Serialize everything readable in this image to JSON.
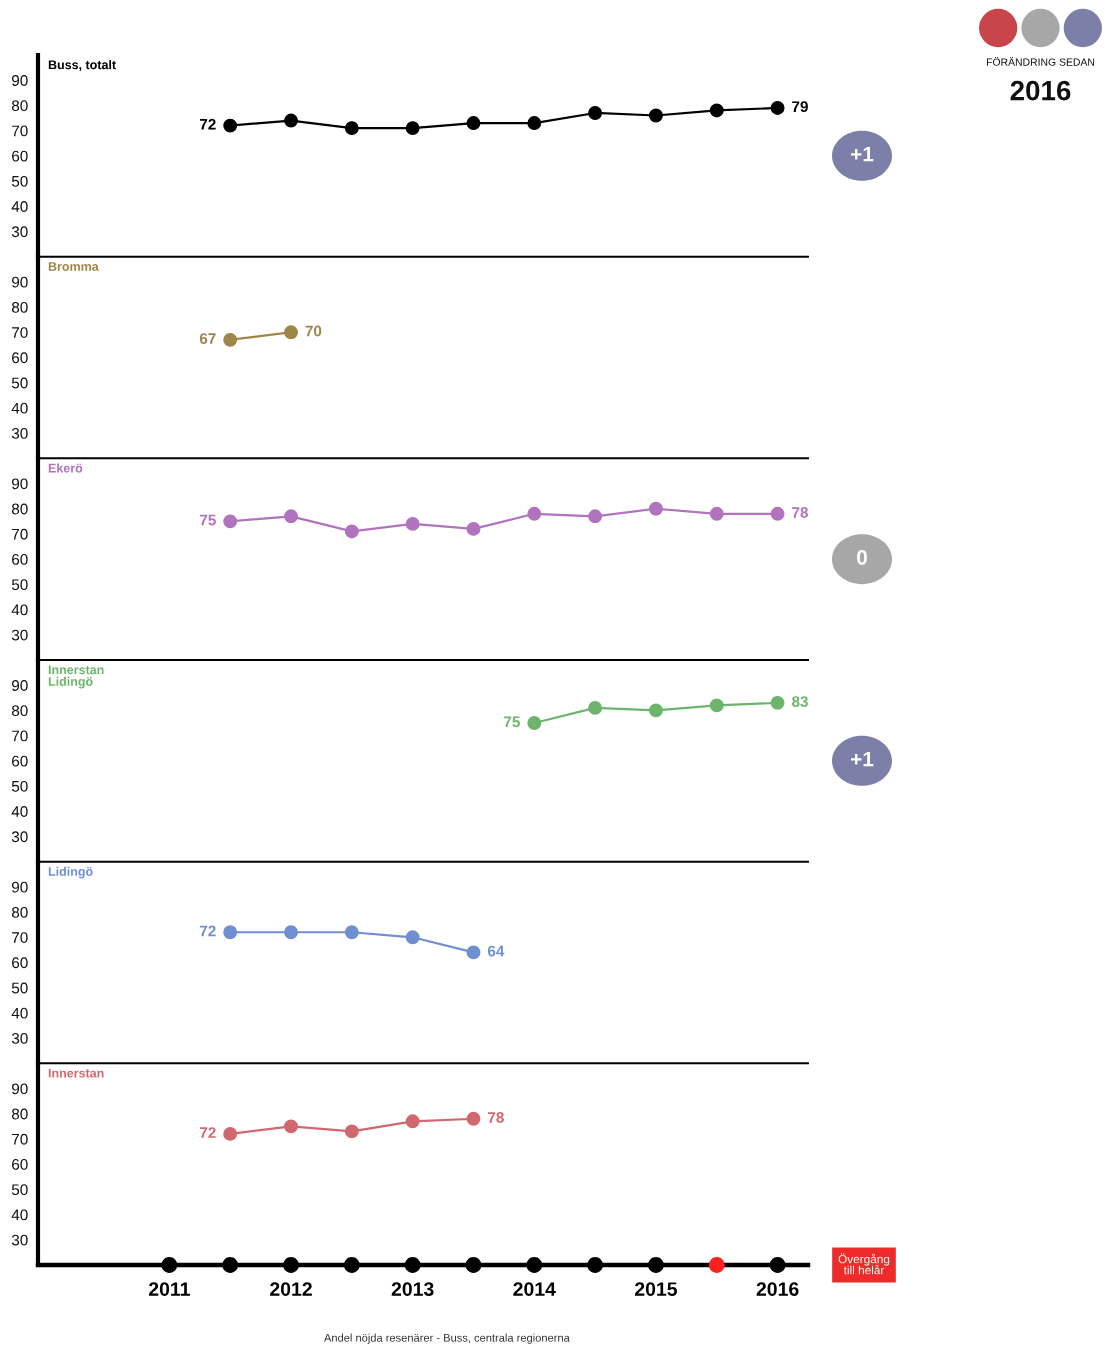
{
  "chart_data": [
    {
      "type": "other",
      "title": "FÖRÄNDRING SEDAN",
      "subtitle": "2016",
      "colors": [
        "#c8464b",
        "#a7a7a7",
        "#7c80a9"
      ]
    },
    {
      "type": "line",
      "title": "Buss, totalt",
      "series": [
        {
          "color": "#000000",
          "x": [
            2011.5,
            2012,
            2012.5,
            2013,
            2013.5,
            2014,
            2014.5,
            2015,
            2015.5,
            2016
          ],
          "values": [
            72,
            74,
            71,
            71,
            73,
            73,
            77,
            76,
            78,
            79
          ],
          "value_labels": [
            "72",
            null,
            null,
            null,
            null,
            null,
            null,
            null,
            null,
            "79"
          ]
        }
      ],
      "xlim": [
        2009.92,
        2016.25
      ],
      "ylim": [
        20,
        100
      ],
      "xticks": [
        2011,
        2012,
        2013,
        2014,
        2015,
        2016
      ],
      "yticks": [
        30,
        40,
        50,
        60,
        70,
        80,
        90
      ],
      "tick_labels": "y",
      "marker": "circle",
      "annotations": [
        "+1"
      ]
    },
    {
      "type": "line",
      "title": "Bromma",
      "series": [
        {
          "color": "#9e8548",
          "x": [
            2011.5,
            2012
          ],
          "values": [
            67,
            70
          ],
          "value_labels": [
            "67",
            "70"
          ]
        }
      ],
      "xlim": [
        2009.92,
        2016.25
      ],
      "ylim": [
        20,
        100
      ],
      "xticks": [
        2011,
        2012,
        2013,
        2014,
        2015,
        2016
      ],
      "yticks": [
        30,
        40,
        50,
        60,
        70,
        80,
        90
      ],
      "tick_labels": "y",
      "marker": "circle"
    },
    {
      "type": "line",
      "title": "Ekerö",
      "series": [
        {
          "color": "#b173bd",
          "x": [
            2011.5,
            2012,
            2012.5,
            2013,
            2013.5,
            2014,
            2014.5,
            2015,
            2015.5,
            2016
          ],
          "values": [
            75,
            77,
            71,
            74,
            72,
            78,
            77,
            80,
            78,
            78
          ],
          "value_labels": [
            "75",
            null,
            null,
            null,
            null,
            null,
            null,
            null,
            null,
            "78"
          ]
        }
      ],
      "xlim": [
        2009.92,
        2016.25
      ],
      "ylim": [
        20,
        100
      ],
      "xticks": [
        2011,
        2012,
        2013,
        2014,
        2015,
        2016
      ],
      "yticks": [
        30,
        40,
        50,
        60,
        70,
        80,
        90
      ],
      "tick_labels": "y",
      "marker": "circle",
      "annotations": [
        "0"
      ]
    },
    {
      "type": "line",
      "title": "Innerstan\nLidingö",
      "series": [
        {
          "color": "#6db46d",
          "x": [
            2014,
            2014.5,
            2015,
            2015.5,
            2016
          ],
          "values": [
            75,
            81,
            80,
            82,
            83
          ],
          "value_labels": [
            "75",
            null,
            null,
            null,
            "83"
          ]
        }
      ],
      "xlim": [
        2009.92,
        2016.25
      ],
      "ylim": [
        20,
        100
      ],
      "xticks": [
        2011,
        2012,
        2013,
        2014,
        2015,
        2016
      ],
      "yticks": [
        30,
        40,
        50,
        60,
        70,
        80,
        90
      ],
      "tick_labels": "y",
      "marker": "circle",
      "annotations": [
        "+1"
      ]
    },
    {
      "type": "line",
      "title": "Lidingö",
      "series": [
        {
          "color": "#6f8fd1",
          "x": [
            2011.5,
            2012,
            2012.5,
            2013,
            2013.5
          ],
          "values": [
            72,
            72,
            72,
            70,
            64
          ],
          "value_labels": [
            "72",
            null,
            null,
            null,
            "64"
          ]
        }
      ],
      "xlim": [
        2009.92,
        2016.25
      ],
      "ylim": [
        20,
        100
      ],
      "xticks": [
        2011,
        2012,
        2013,
        2014,
        2015,
        2016
      ],
      "yticks": [
        30,
        40,
        50,
        60,
        70,
        80,
        90
      ],
      "tick_labels": "y",
      "marker": "circle"
    },
    {
      "type": "line",
      "title": "Innerstan",
      "xlabel": "Andel nöjda resenärer - Buss, centrala regionerna",
      "series": [
        {
          "color": "#d1686f",
          "x": [
            2011.5,
            2012,
            2012.5,
            2013,
            2013.5
          ],
          "values": [
            72,
            75,
            73,
            77,
            78
          ],
          "value_labels": [
            "72",
            null,
            null,
            null,
            "78"
          ]
        },
        {
          "type": "scatter",
          "x": [
            2011,
            2011.5,
            2012,
            2012.5,
            2013,
            2013.5,
            2014,
            2014.5,
            2015,
            2015.5,
            2016
          ],
          "values": [
            20,
            20,
            20,
            20,
            20,
            20,
            20,
            20,
            20,
            20,
            20
          ],
          "colors": [
            "#000000",
            "#000000",
            "#000000",
            "#000000",
            "#000000",
            "#000000",
            "#000000",
            "#000000",
            "#000000",
            "#ff2020",
            "#000000"
          ]
        }
      ],
      "xlim": [
        2009.92,
        2016.25
      ],
      "ylim": [
        20,
        100
      ],
      "xticks": [
        2011,
        2012,
        2013,
        2014,
        2015,
        2016
      ],
      "yticks": [
        30,
        40,
        50,
        60,
        70,
        80,
        90
      ],
      "marker": "circle",
      "annotations": [
        "Övergång\ntill helår"
      ]
    }
  ]
}
